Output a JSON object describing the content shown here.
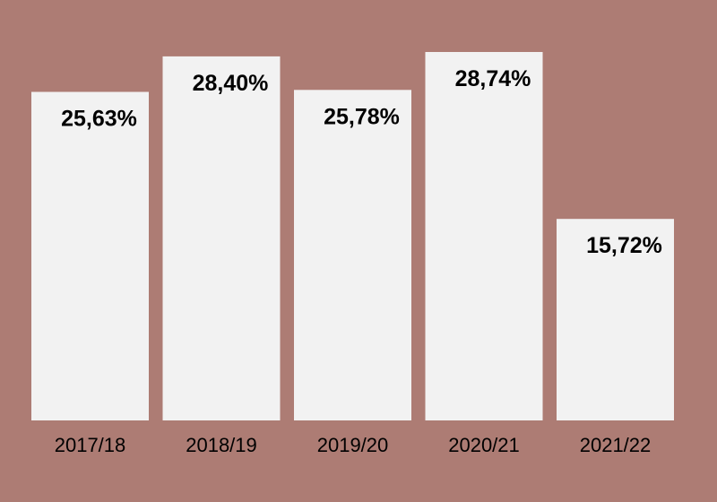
{
  "colors": {
    "background": "#ad7c74",
    "bar": "#f2f2f2",
    "text": "#000000"
  },
  "chart_data": {
    "type": "bar",
    "title": "",
    "xlabel": "",
    "ylabel": "",
    "categories": [
      "2017/18",
      "2018/19",
      "2019/20",
      "2020/21",
      "2021/22"
    ],
    "values": [
      25.63,
      28.4,
      25.78,
      28.74,
      15.72
    ],
    "data_labels": [
      "25,63%",
      "28,40%",
      "25,78%",
      "28,74%",
      "15,72%"
    ],
    "ylim": [
      0,
      30
    ],
    "grid": false,
    "legend": "none"
  }
}
